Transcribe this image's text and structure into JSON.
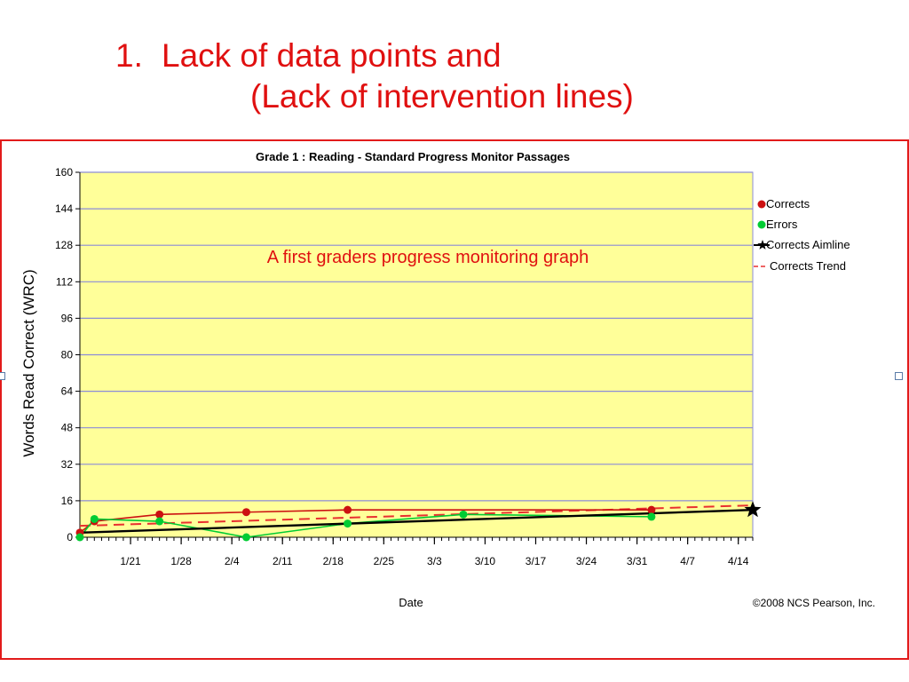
{
  "slide": {
    "title_number": "1.",
    "title_line1": "Lack of data points and",
    "title_line2": "(Lack of intervention lines)"
  },
  "colors": {
    "accent": "#e01010",
    "frame_border": "#e21b1b",
    "plot_background": "#ffff99",
    "gridline": "#8c8cd8",
    "corrects": "#cc1111",
    "errors": "#00cc33",
    "aimline": "#000000",
    "trend": "#e83030"
  },
  "chart_data": {
    "type": "line",
    "title": "Grade 1 : Reading - Standard Progress Monitor Passages",
    "xlabel": "Date",
    "ylabel": "Words Read Correct (WRC)",
    "annotation": "A first graders progress monitoring graph",
    "copyright": "©2008 NCS Pearson, Inc.",
    "grid": true,
    "legend_position": "right",
    "x_tick_labels": [
      "1/21",
      "1/28",
      "2/4",
      "2/11",
      "2/18",
      "2/25",
      "3/3",
      "3/10",
      "3/17",
      "3/24",
      "3/31",
      "4/7",
      "4/14"
    ],
    "x_range": [
      "1/14",
      "4/16"
    ],
    "y_ticks": [
      0,
      16,
      32,
      48,
      64,
      80,
      96,
      112,
      128,
      144,
      160
    ],
    "ylim": [
      0,
      160
    ],
    "series": [
      {
        "name": "Corrects",
        "marker": "circle",
        "x": [
          "1/14",
          "1/16",
          "1/25",
          "2/6",
          "2/20",
          "4/2"
        ],
        "y": [
          2,
          7,
          10,
          11,
          12,
          12
        ]
      },
      {
        "name": "Errors",
        "marker": "circle",
        "x": [
          "1/14",
          "1/16",
          "1/25",
          "2/6",
          "2/20",
          "3/7",
          "4/2"
        ],
        "y": [
          0,
          8,
          7,
          0,
          6,
          10,
          9
        ]
      },
      {
        "name": "Corrects Aimline",
        "marker": "star",
        "x": [
          "1/14",
          "4/16"
        ],
        "y": [
          2,
          12
        ]
      },
      {
        "name": "Corrects Trend",
        "style": "dashed",
        "x": [
          "1/14",
          "4/16"
        ],
        "y": [
          5,
          14
        ]
      }
    ]
  }
}
